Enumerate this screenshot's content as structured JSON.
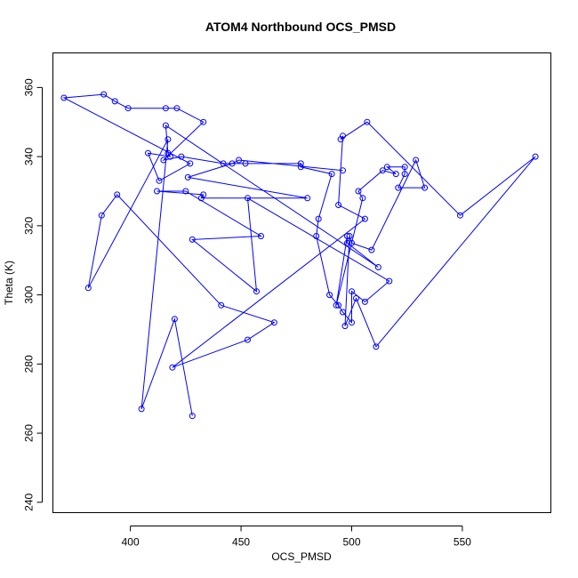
{
  "chart_data": {
    "type": "line",
    "title": "ATOM4 Northbound OCS_PMSD",
    "xlabel": "OCS_PMSD",
    "ylabel": "Theta (K)",
    "xlim": [
      365,
      590
    ],
    "ylim": [
      237,
      370
    ],
    "x_ticks": [
      400,
      450,
      500,
      550
    ],
    "y_ticks": [
      240,
      260,
      280,
      300,
      320,
      340,
      360
    ],
    "grid": false,
    "legend": "none",
    "line_color": "#0000ff",
    "marker": "open-circle",
    "series": [
      {
        "x": [
          428,
          420,
          405,
          417,
          381,
          387,
          394,
          441,
          465,
          453,
          419,
          506,
          494,
          496,
          495,
          507,
          549,
          583,
          511,
          502,
          497,
          499,
          500,
          509,
          529,
          533,
          521,
          524,
          524,
          516,
          520,
          514,
          503,
          505,
          493,
          498,
          498,
          512,
          416,
          417,
          418,
          408,
          413,
          427,
          370,
          388,
          393,
          399,
          416,
          421,
          433,
          415,
          423,
          442,
          452,
          477,
          477,
          491,
          485,
          484,
          490,
          494,
          496,
          500,
          500,
          506,
          517,
          453,
          457,
          428,
          459,
          425,
          412,
          433,
          432,
          480,
          426,
          446,
          449,
          496
        ],
        "y": [
          265,
          293,
          267,
          345,
          302,
          323,
          329,
          297,
          292,
          287,
          279,
          322,
          326,
          346,
          345,
          350,
          323,
          340,
          285,
          299,
          291,
          317,
          315,
          313,
          339,
          331,
          331,
          335,
          337,
          337,
          335,
          336,
          330,
          328,
          297,
          317,
          315,
          308,
          349,
          341,
          340,
          341,
          333,
          338,
          357,
          358,
          356,
          354,
          354,
          354,
          350,
          339,
          340,
          338,
          338,
          338,
          337,
          335,
          322,
          317,
          300,
          297,
          295,
          292,
          301,
          298,
          304,
          328,
          301,
          316,
          317,
          330,
          330,
          329,
          328,
          328,
          334,
          338,
          339,
          336
        ]
      }
    ]
  }
}
